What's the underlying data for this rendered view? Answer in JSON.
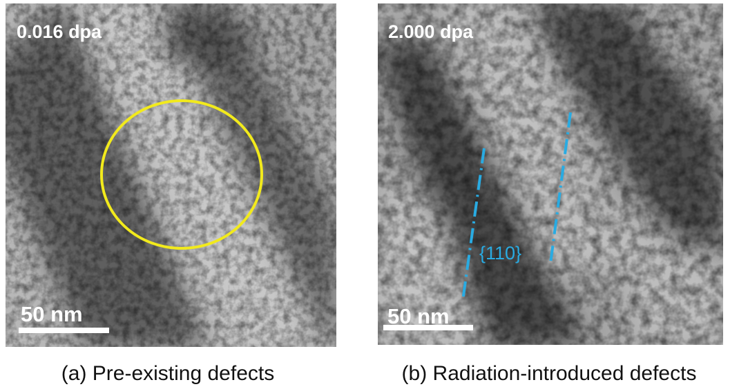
{
  "panels": [
    {
      "dose": "0.016 dpa",
      "scale_bar": "50 nm",
      "caption": "(a) Pre-existing defects"
    },
    {
      "dose": "2.000 dpa",
      "scale_bar": "50 nm",
      "caption": "(b) Radiation-introduced defects",
      "annotation": "{110}"
    }
  ]
}
